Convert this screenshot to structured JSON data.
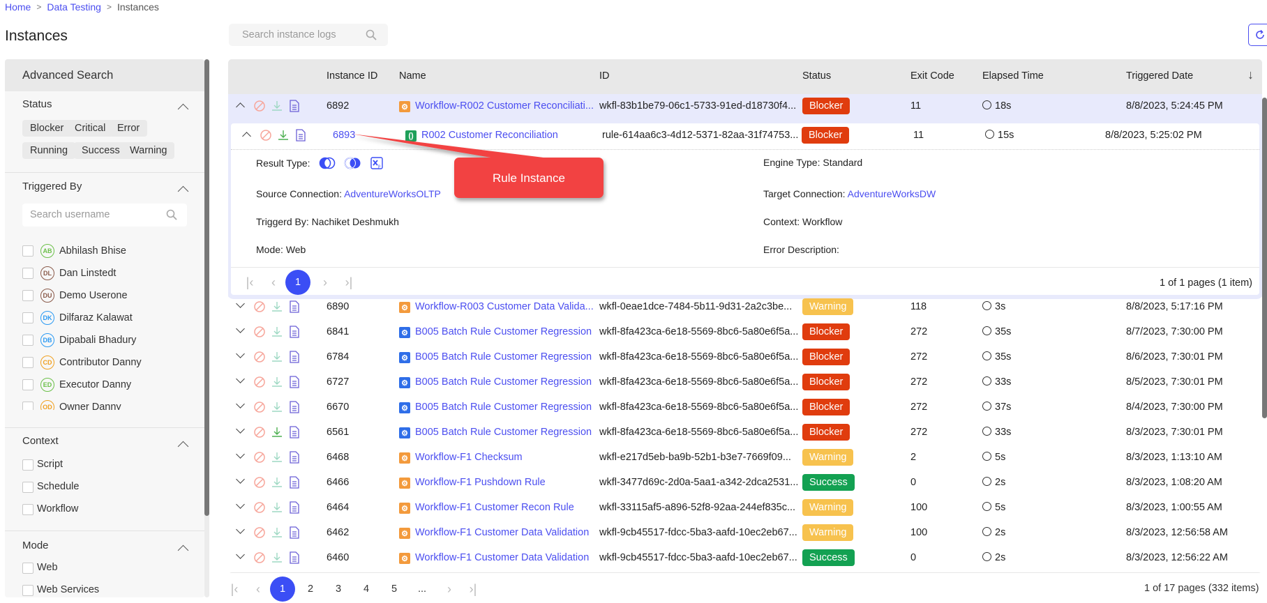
{
  "breadcrumb": [
    {
      "label": "Home"
    },
    {
      "label": "Data Testing"
    },
    {
      "label": "Instances"
    }
  ],
  "title": "Instances",
  "search": {
    "placeholder": "Search instance logs"
  },
  "sidebar": {
    "header": "Advanced Search",
    "status": {
      "title": "Status",
      "chips": [
        "Blocker",
        "Critical",
        "Error",
        "Running",
        "Success",
        "Warning"
      ]
    },
    "triggered_by": {
      "title": "Triggered By",
      "placeholder": "Search username",
      "users": [
        {
          "initials": "AB",
          "name": "Abhilash Bhise",
          "color": "#6cc04a"
        },
        {
          "initials": "DL",
          "name": "Dan Linstedt",
          "color": "#8a5a4a"
        },
        {
          "initials": "DU",
          "name": "Demo Userone",
          "color": "#8a5a4a"
        },
        {
          "initials": "DK",
          "name": "Dilfaraz Kalawat",
          "color": "#2b9af3"
        },
        {
          "initials": "DB",
          "name": "Dipabali Bhadury",
          "color": "#2b9af3"
        },
        {
          "initials": "CD",
          "name": "Contributor Danny",
          "color": "#f0a020"
        },
        {
          "initials": "ED",
          "name": "Executor Danny",
          "color": "#6cc04a"
        },
        {
          "initials": "OD",
          "name": "Owner Danny",
          "color": "#f0a020"
        }
      ]
    },
    "context": {
      "title": "Context",
      "items": [
        "Script",
        "Schedule",
        "Workflow"
      ]
    },
    "mode": {
      "title": "Mode",
      "items": [
        "Web",
        "Web Services"
      ]
    }
  },
  "table": {
    "columns": [
      "Instance ID",
      "Name",
      "ID",
      "Status",
      "Exit Code",
      "Elapsed Time",
      "Triggered Date"
    ],
    "sort_icon": "arrow-down-icon",
    "status_colors": {
      "Blocker": "#e03c0e",
      "Warning": "#f7c24e",
      "Success": "#13a152"
    },
    "type_colors": {
      "workflow": "#f39a3c",
      "batch": "#2f6ee8",
      "rule": "#1fa05a"
    },
    "expanded_row": {
      "instance_id": "6892",
      "type": "workflow",
      "name": "Workflow-R002 Customer Reconciliati...",
      "id": "wkfl-83b1be79-06c1-5733-91ed-d18730f4...",
      "status": "Blocker",
      "exit_code": "11",
      "elapsed": "18s",
      "triggered": "8/8/2023, 5:24:45 PM"
    },
    "nested_row": {
      "instance_id": "6893",
      "type": "rule",
      "name": "R002 Customer Reconciliation",
      "id": "rule-614aa6c3-4d12-5371-82aa-31f74753...",
      "status": "Blocker",
      "exit_code": "11",
      "elapsed": "15s",
      "triggered": "8/8/2023, 5:25:02 PM"
    },
    "details": {
      "result_type_label": "Result Type:",
      "source_label": "Source Connection:",
      "source_value": "AdventureWorksOLTP",
      "triggered_label": "Triggerd By:",
      "triggered_value": "Nachiket Deshmukh",
      "mode_label": "Mode:",
      "mode_value": "Web",
      "engine_label": "Engine Type:",
      "engine_value": "Standard",
      "target_label": "Target Connection:",
      "target_value": "AdventureWorksDW",
      "context_label": "Context:",
      "context_value": "Workflow",
      "error_label": "Error Description:",
      "error_value": ""
    },
    "nested_pagination": {
      "current": "1",
      "summary": "1 of 1 pages (1 item)"
    },
    "rows": [
      {
        "instance_id": "6890",
        "type": "workflow",
        "name": "Workflow-R003 Customer Data Valida...",
        "id": "wkfl-0eae1dce-7484-5b11-9d31-2a2c3be...",
        "status": "Warning",
        "exit_code": "118",
        "elapsed": "3s",
        "triggered": "8/8/2023, 5:17:16 PM"
      },
      {
        "instance_id": "6841",
        "type": "batch",
        "name": "B005 Batch Rule Customer Regression",
        "id": "wkfl-8fa423ca-6e18-5569-8bc6-5a80e6f5a...",
        "status": "Blocker",
        "exit_code": "272",
        "elapsed": "35s",
        "triggered": "8/7/2023, 7:30:00 PM"
      },
      {
        "instance_id": "6784",
        "type": "batch",
        "name": "B005 Batch Rule Customer Regression",
        "id": "wkfl-8fa423ca-6e18-5569-8bc6-5a80e6f5a...",
        "status": "Blocker",
        "exit_code": "272",
        "elapsed": "35s",
        "triggered": "8/6/2023, 7:30:01 PM"
      },
      {
        "instance_id": "6727",
        "type": "batch",
        "name": "B005 Batch Rule Customer Regression",
        "id": "wkfl-8fa423ca-6e18-5569-8bc6-5a80e6f5a...",
        "status": "Blocker",
        "exit_code": "272",
        "elapsed": "33s",
        "triggered": "8/5/2023, 7:30:01 PM"
      },
      {
        "instance_id": "6670",
        "type": "batch",
        "name": "B005 Batch Rule Customer Regression",
        "id": "wkfl-8fa423ca-6e18-5569-8bc6-5a80e6f5a...",
        "status": "Blocker",
        "exit_code": "272",
        "elapsed": "37s",
        "triggered": "8/4/2023, 7:30:00 PM"
      },
      {
        "instance_id": "6561",
        "type": "batch",
        "name": "B005 Batch Rule Customer Regression",
        "id": "wkfl-8fa423ca-6e18-5569-8bc6-5a80e6f5a...",
        "status": "Blocker",
        "exit_code": "272",
        "elapsed": "33s",
        "triggered": "8/3/2023, 7:30:01 PM"
      },
      {
        "instance_id": "6468",
        "type": "workflow",
        "name": "Workflow-F1 Checksum",
        "id": "wkfl-e217d5eb-ba9b-52b1-b3e7-7669f09...",
        "status": "Warning",
        "exit_code": "2",
        "elapsed": "5s",
        "triggered": "8/3/2023, 1:13:10 AM"
      },
      {
        "instance_id": "6466",
        "type": "workflow",
        "name": "Workflow-F1 Pushdown Rule",
        "id": "wkfl-3477d69c-2d0a-5aa1-a342-2dca2531...",
        "status": "Success",
        "exit_code": "0",
        "elapsed": "2s",
        "triggered": "8/3/2023, 1:08:20 AM"
      },
      {
        "instance_id": "6464",
        "type": "workflow",
        "name": "Workflow-F1 Customer Recon Rule",
        "id": "wkfl-33115af5-a896-52f8-92aa-244ef835c...",
        "status": "Warning",
        "exit_code": "100",
        "elapsed": "5s",
        "triggered": "8/3/2023, 1:00:55 AM"
      },
      {
        "instance_id": "6462",
        "type": "workflow",
        "name": "Workflow-F1 Customer Data Validation",
        "id": "wkfl-9cb45517-fdcc-5ba3-aafd-10ec2eb67...",
        "status": "Warning",
        "exit_code": "100",
        "elapsed": "2s",
        "triggered": "8/3/2023, 12:56:58 AM"
      },
      {
        "instance_id": "6460",
        "type": "workflow",
        "name": "Workflow-F1 Customer Data Validation",
        "id": "wkfl-9cb45517-fdcc-5ba3-aafd-10ec2eb67...",
        "status": "Success",
        "exit_code": "0",
        "elapsed": "2s",
        "triggered": "8/3/2023, 12:56:22 AM"
      }
    ],
    "pagination": {
      "pages": [
        "1",
        "2",
        "3",
        "4",
        "5",
        "..."
      ],
      "current": "1",
      "summary": "1 of 17 pages (332 items)"
    }
  },
  "callout": {
    "text": "Rule Instance",
    "color": "#f24343"
  }
}
